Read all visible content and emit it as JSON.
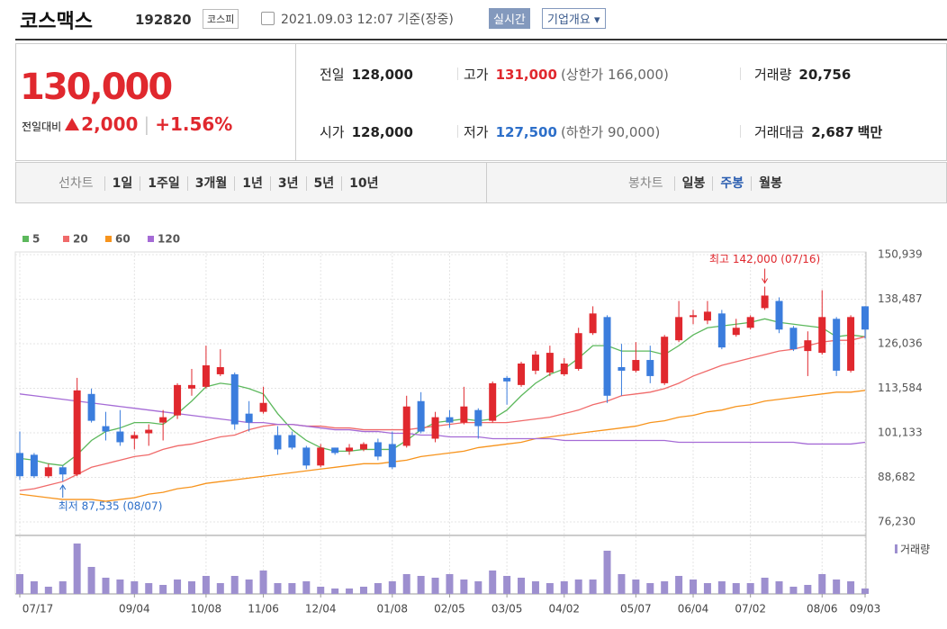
{
  "header": {
    "name": "코스맥스",
    "code": "192820",
    "market": "코스피",
    "time": "2021.09.03 12:07 기준(장중)",
    "realtime": "실시간",
    "company": "기업개요"
  },
  "quote": {
    "price": "130,000",
    "change_label": "전일대비",
    "change": "2,000",
    "rate": "+1.56%"
  },
  "stats": [
    {
      "label": "전일",
      "value": "128,000"
    },
    {
      "label": "고가",
      "value": "131,000",
      "sub": "(상한가 166,000)",
      "color": "#e0282e"
    },
    {
      "label": "거래량",
      "value": "20,756"
    },
    {
      "label": "시가",
      "value": "128,000"
    },
    {
      "label": "저가",
      "value": "127,500",
      "sub": "(하한가 90,000)",
      "color": "#2d6fc9"
    },
    {
      "label": "거래대금",
      "value": "2,687",
      "unit": "백만"
    }
  ],
  "tabs": {
    "line_label": "선차트",
    "line": [
      "1일",
      "1주일",
      "3개월",
      "1년",
      "3년",
      "5년",
      "10년"
    ],
    "candle_label": "봉차트",
    "candle": [
      "일봉",
      "주봉",
      "월봉"
    ],
    "active": "주봉"
  },
  "chart_data": {
    "type": "candlestick",
    "up_color": "#e0282e",
    "down_color": "#3b7ddd",
    "grid": true,
    "categories": [
      "07/17",
      null,
      null,
      null,
      null,
      null,
      null,
      null,
      "09/04",
      null,
      null,
      null,
      null,
      "10/08",
      null,
      null,
      null,
      "11/06",
      null,
      null,
      null,
      "12/04",
      null,
      null,
      null,
      null,
      "01/08",
      null,
      null,
      null,
      "02/05",
      null,
      null,
      null,
      "03/05",
      null,
      null,
      null,
      "04/02",
      null,
      null,
      null,
      null,
      "05/07",
      null,
      null,
      null,
      "06/04",
      null,
      null,
      null,
      "07/02",
      null,
      null,
      null,
      null,
      "08/06",
      null,
      null,
      "09/03"
    ],
    "open": [
      95500,
      95000,
      89000,
      91500,
      89500,
      112000,
      103000,
      101500,
      99500,
      101000,
      104000,
      106000,
      113500,
      114000,
      117500,
      117500,
      106500,
      107000,
      100500,
      100500,
      97000,
      92000,
      97000,
      96000,
      96500,
      98500,
      98000,
      97500,
      110000,
      99500,
      105500,
      104000,
      107500,
      104500,
      116500,
      114500,
      118500,
      118000,
      117500,
      119000,
      129000,
      133500,
      119500,
      118500,
      121500,
      115000,
      127000,
      133500,
      132500,
      134500,
      128500,
      130500,
      136000,
      138000,
      130500,
      124000,
      123500,
      133000,
      118500,
      136500
    ],
    "high": [
      101500,
      95500,
      92500,
      92000,
      116500,
      113500,
      107000,
      107500,
      101500,
      103500,
      107500,
      115000,
      119000,
      125500,
      124500,
      118000,
      110000,
      114000,
      103000,
      101500,
      97500,
      98000,
      97000,
      98000,
      98500,
      99500,
      101500,
      111500,
      112500,
      107000,
      107500,
      114000,
      108000,
      115500,
      117000,
      121000,
      124000,
      125500,
      122000,
      130500,
      136500,
      134000,
      126000,
      126500,
      125500,
      128500,
      138000,
      135500,
      138000,
      135500,
      133000,
      134000,
      142000,
      139000,
      131000,
      129500,
      141000,
      133500,
      134000,
      136500
    ],
    "low": [
      88000,
      88500,
      88500,
      87535,
      89000,
      104000,
      99000,
      97500,
      96500,
      97500,
      99000,
      105000,
      111500,
      113500,
      117000,
      102000,
      101500,
      106500,
      95000,
      96500,
      91000,
      91500,
      95000,
      95000,
      96000,
      93500,
      91000,
      97000,
      101000,
      98500,
      102500,
      103500,
      99500,
      104000,
      109000,
      114000,
      117500,
      117000,
      117000,
      118500,
      128500,
      109500,
      111500,
      118000,
      115000,
      114500,
      126500,
      131500,
      131500,
      124500,
      128000,
      130000,
      135500,
      129000,
      124000,
      117000,
      123000,
      117000,
      118000,
      127500
    ],
    "close": [
      89000,
      89000,
      91500,
      89500,
      113000,
      104500,
      101500,
      98500,
      100500,
      102000,
      105500,
      114500,
      114500,
      120000,
      119500,
      103500,
      104000,
      109500,
      96500,
      97000,
      92000,
      97000,
      95500,
      97000,
      98000,
      94500,
      91500,
      108500,
      101500,
      105500,
      104000,
      108500,
      103000,
      115000,
      115500,
      120500,
      123000,
      123500,
      120500,
      129000,
      134500,
      111500,
      118500,
      121500,
      117000,
      128000,
      133500,
      134000,
      135000,
      125000,
      130500,
      133500,
      139500,
      130000,
      124500,
      127000,
      133500,
      118500,
      133500,
      130000
    ],
    "series": [
      {
        "name": "5",
        "color": "#5cb85c",
        "values": [
          94000,
          93500,
          92500,
          92000,
          95000,
          99000,
          101500,
          102500,
          104000,
          104000,
          103500,
          106500,
          110000,
          114000,
          115000,
          114500,
          113500,
          112000,
          106500,
          102000,
          99000,
          97000,
          96000,
          96000,
          96500,
          96500,
          96500,
          99000,
          102000,
          104000,
          104500,
          105000,
          104500,
          105000,
          107500,
          111500,
          115000,
          117500,
          119000,
          122000,
          125500,
          125500,
          124000,
          124000,
          124000,
          123000,
          125500,
          128500,
          130500,
          131000,
          131500,
          132000,
          133000,
          132000,
          131500,
          131000,
          130500,
          128000,
          128500,
          128000
        ]
      },
      {
        "name": "20",
        "color": "#f06a6a",
        "values": [
          85000,
          85500,
          86500,
          87500,
          89500,
          91500,
          92500,
          93500,
          94500,
          95000,
          96500,
          97500,
          98000,
          99000,
          100000,
          100500,
          102000,
          103000,
          103500,
          103500,
          103000,
          103000,
          102500,
          102500,
          102000,
          102000,
          102000,
          102000,
          102500,
          103000,
          103500,
          104000,
          104000,
          104000,
          104000,
          104500,
          105000,
          105500,
          106500,
          107500,
          109000,
          110000,
          111500,
          112000,
          112500,
          113500,
          115000,
          117000,
          118500,
          120000,
          121000,
          122000,
          123000,
          124000,
          124500,
          125500,
          126500,
          127000,
          127000,
          128000
        ]
      },
      {
        "name": "60",
        "color": "#f7941d",
        "values": [
          84000,
          83500,
          83000,
          82500,
          82500,
          82500,
          82000,
          82500,
          83000,
          84000,
          84500,
          85500,
          86000,
          87000,
          87500,
          88000,
          88500,
          89000,
          89500,
          90000,
          90500,
          91000,
          91500,
          92000,
          92500,
          92500,
          93000,
          93500,
          94500,
          95000,
          95500,
          96000,
          97000,
          97500,
          98000,
          98500,
          99500,
          100000,
          100500,
          101000,
          101500,
          102000,
          102500,
          103000,
          104000,
          104500,
          105500,
          106000,
          107000,
          107500,
          108500,
          109000,
          110000,
          110500,
          111000,
          111500,
          112000,
          112500,
          112500,
          113000
        ]
      },
      {
        "name": "120",
        "color": "#a56bd6",
        "values": [
          112000,
          111500,
          111000,
          110500,
          110000,
          109500,
          109000,
          108500,
          108000,
          107500,
          107000,
          106500,
          106000,
          105500,
          105000,
          104500,
          104000,
          104000,
          103500,
          103500,
          103000,
          102500,
          102000,
          102000,
          101500,
          101500,
          101000,
          101000,
          100500,
          100500,
          100000,
          100000,
          100000,
          99500,
          99500,
          99500,
          99500,
          99500,
          99000,
          99000,
          99000,
          99000,
          99000,
          99000,
          99000,
          99000,
          98500,
          98500,
          98500,
          98500,
          98500,
          98500,
          98500,
          98500,
          98500,
          98000,
          98000,
          98000,
          98000,
          98500
        ]
      }
    ],
    "ylim": [
      76230,
      150939
    ],
    "yticks": [
      {
        "value": 76230,
        "label": "76,230"
      },
      {
        "value": 88682,
        "label": "88,682"
      },
      {
        "value": 101133,
        "label": "101,133"
      },
      {
        "value": 113584,
        "label": "113,584"
      },
      {
        "value": 126036,
        "label": "126,036"
      },
      {
        "value": 138487,
        "label": "138,487"
      },
      {
        "value": 150939,
        "label": "150,939"
      }
    ],
    "annotations": [
      {
        "text": "최고 142,000 (07/16)",
        "color": "#e0282e",
        "at": "high"
      },
      {
        "text": "최저 87,535 (08/07)",
        "color": "#2d6fc9",
        "at": "low"
      }
    ],
    "volume": {
      "name": "거래량",
      "color": "#9d8fcf",
      "ylim": [
        0,
        60
      ],
      "values": [
        22,
        14,
        8,
        14,
        56,
        30,
        18,
        16,
        14,
        12,
        10,
        16,
        14,
        20,
        12,
        20,
        16,
        26,
        12,
        12,
        14,
        8,
        6,
        6,
        8,
        12,
        14,
        22,
        20,
        18,
        22,
        16,
        14,
        26,
        20,
        18,
        14,
        12,
        14,
        16,
        16,
        48,
        22,
        16,
        12,
        14,
        20,
        16,
        12,
        14,
        12,
        12,
        18,
        14,
        8,
        10,
        22,
        16,
        14,
        6
      ]
    }
  }
}
